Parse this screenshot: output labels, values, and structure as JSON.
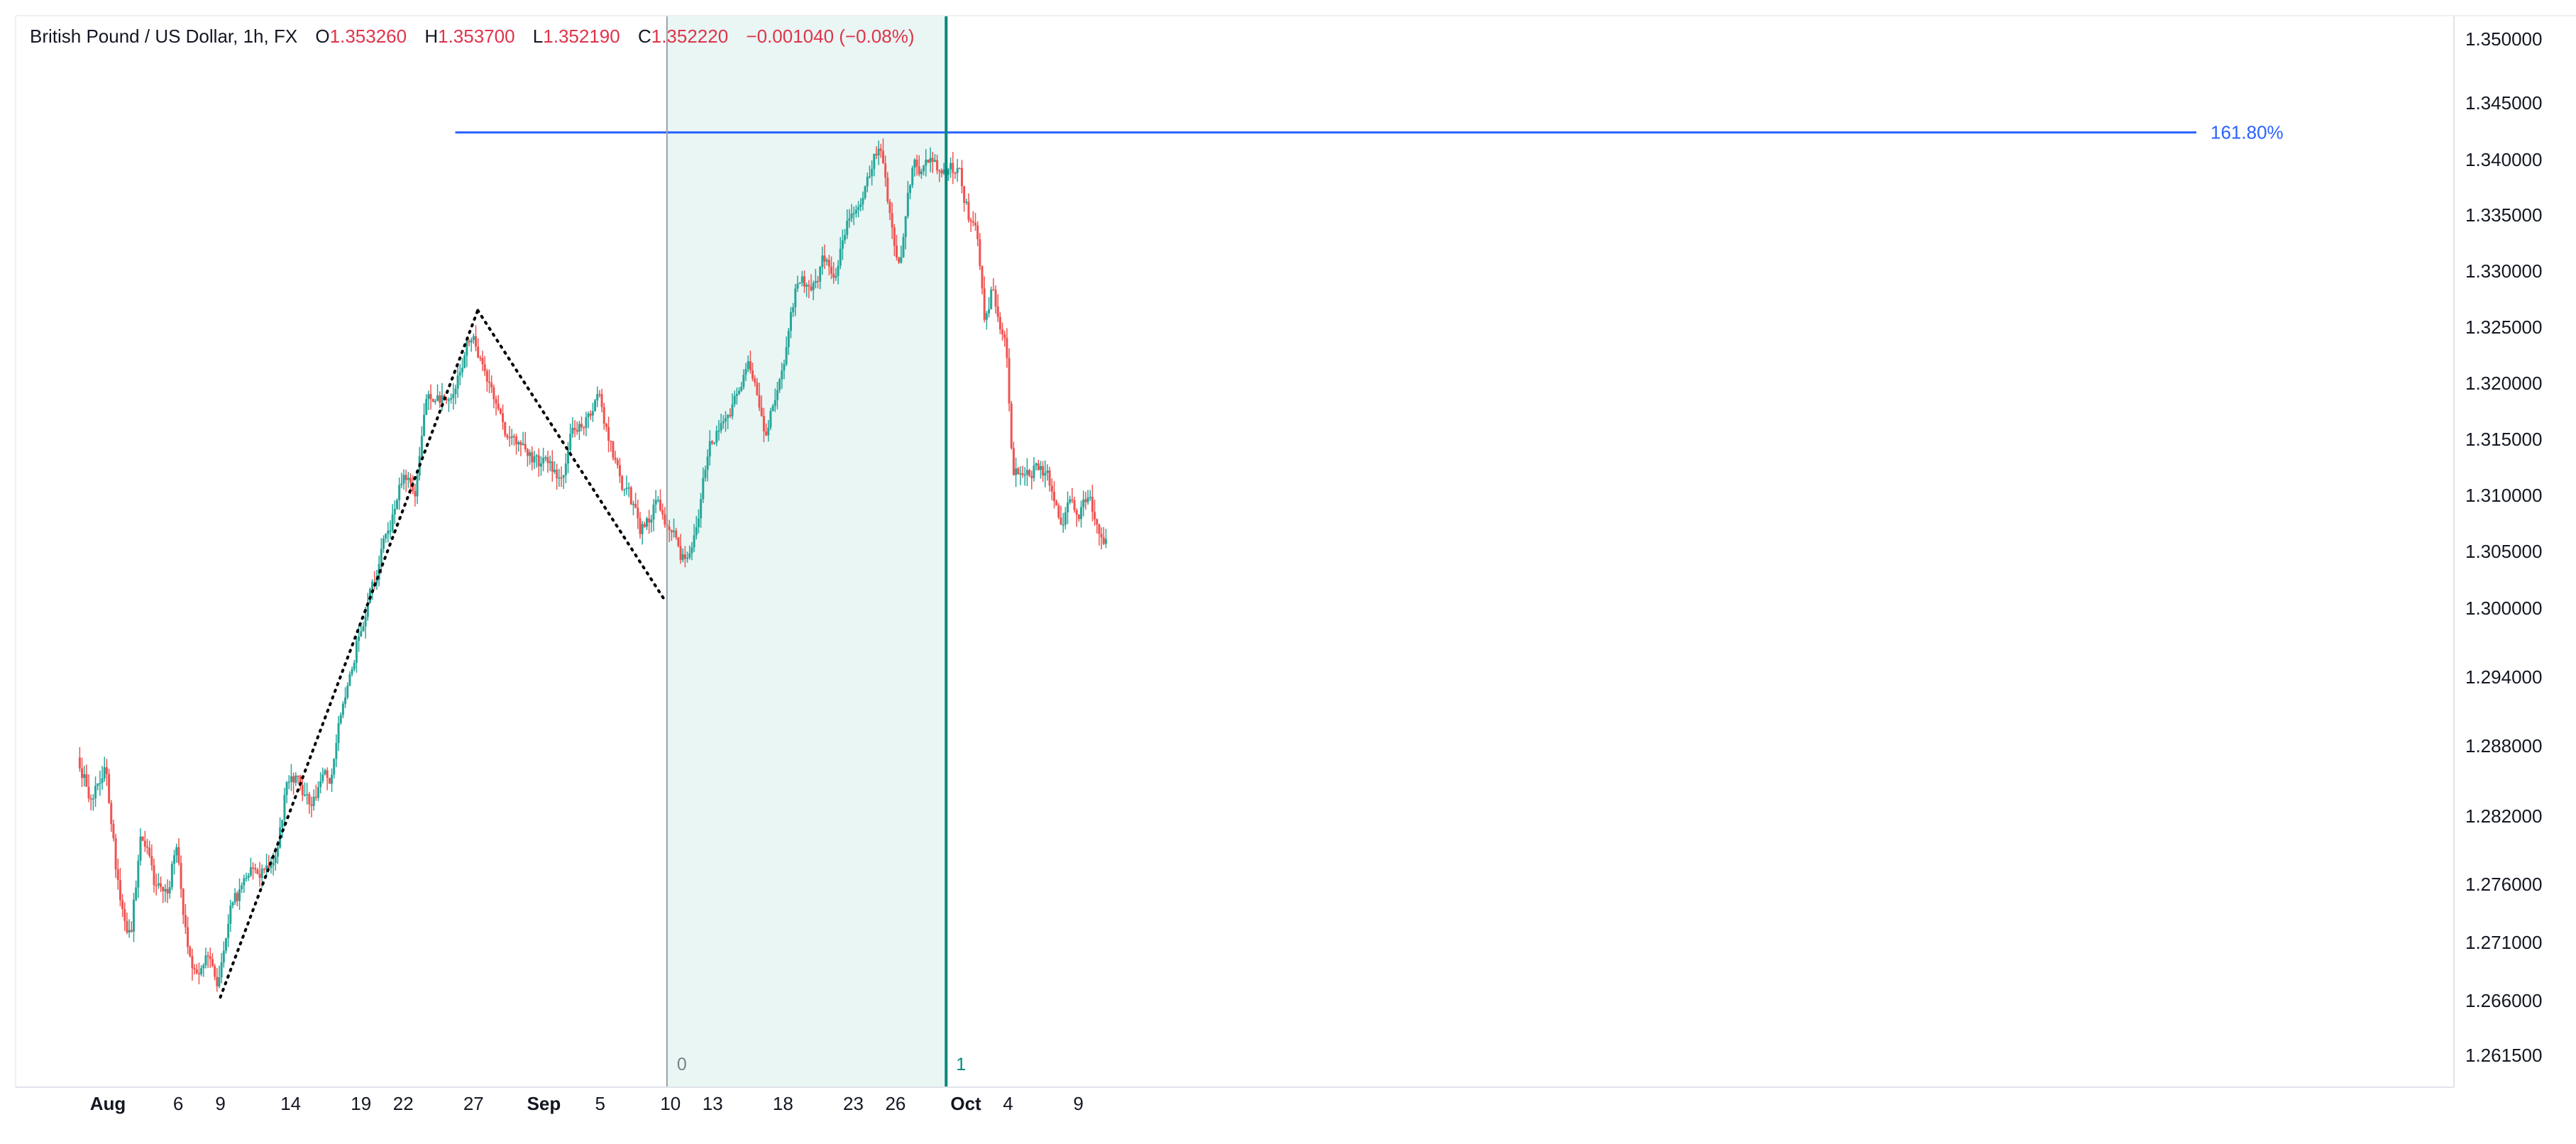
{
  "legend": {
    "symbol": "British Pound / US Dollar, 1h, FX",
    "o_label": "O",
    "o": "1.353260",
    "h_label": "H",
    "h": "1.353700",
    "l_label": "L",
    "l": "1.352190",
    "c_label": "C",
    "c": "1.352220",
    "change": "−0.001040 (−0.08%)"
  },
  "colors": {
    "up": "#26a69a",
    "down": "#ef5350",
    "fib_line": "#2962ff",
    "time_zone_fill": "#e9f6f4",
    "time_zone_line1": "#00897b",
    "time_zone_line0": "#9aa0a6",
    "trend": "#000000"
  },
  "chart_data": {
    "type": "candlestick",
    "title": "British Pound / US Dollar, 1h, FX",
    "y_axis": {
      "ticks": [
        "1.350000",
        "1.345000",
        "1.340000",
        "1.335000",
        "1.330000",
        "1.325000",
        "1.320000",
        "1.315000",
        "1.310000",
        "1.305000",
        "1.300000",
        "1.294000",
        "1.288000",
        "1.282000",
        "1.276000",
        "1.271000",
        "1.266000",
        "1.261500"
      ],
      "range": [
        1.2595,
        1.3525
      ]
    },
    "x_axis": {
      "labels": [
        {
          "text": "Aug",
          "t": 0
        },
        {
          "text": "6",
          "t": 5
        },
        {
          "text": "9",
          "t": 8
        },
        {
          "text": "14",
          "t": 13
        },
        {
          "text": "19",
          "t": 18
        },
        {
          "text": "22",
          "t": 21
        },
        {
          "text": "27",
          "t": 26
        },
        {
          "text": "Sep",
          "t": 31
        },
        {
          "text": "5",
          "t": 35
        },
        {
          "text": "10",
          "t": 40
        },
        {
          "text": "13",
          "t": 43
        },
        {
          "text": "18",
          "t": 48
        },
        {
          "text": "23",
          "t": 53
        },
        {
          "text": "26",
          "t": 56
        },
        {
          "text": "Oct",
          "t": 61
        },
        {
          "text": "4",
          "t": 64
        },
        {
          "text": "9",
          "t": 69
        }
      ]
    },
    "price_path": [
      [
        -2,
        1.287
      ],
      [
        -1,
        1.284
      ],
      [
        0,
        1.2855
      ],
      [
        0.5,
        1.28
      ],
      [
        1,
        1.2745
      ],
      [
        1.8,
        1.272
      ],
      [
        2.5,
        1.28
      ],
      [
        3,
        1.279
      ],
      [
        3.5,
        1.276
      ],
      [
        4.5,
        1.2745
      ],
      [
        5,
        1.28
      ],
      [
        5.5,
        1.274
      ],
      [
        6,
        1.27
      ],
      [
        6.5,
        1.269
      ],
      [
        7,
        1.2705
      ],
      [
        7.5,
        1.269
      ],
      [
        8,
        1.2672
      ],
      [
        9,
        1.2745
      ],
      [
        10,
        1.276
      ],
      [
        11,
        1.277
      ],
      [
        12,
        1.279
      ],
      [
        13,
        1.286
      ],
      [
        14,
        1.284
      ],
      [
        15,
        1.2835
      ],
      [
        16,
        1.285
      ],
      [
        17,
        1.293
      ],
      [
        18,
        1.298
      ],
      [
        19,
        1.302
      ],
      [
        20,
        1.306
      ],
      [
        21,
        1.311
      ],
      [
        22,
        1.311
      ],
      [
        23,
        1.319
      ],
      [
        24,
        1.3185
      ],
      [
        25,
        1.3205
      ],
      [
        26,
        1.325
      ],
      [
        27,
        1.322
      ],
      [
        28,
        1.317
      ],
      [
        29,
        1.314
      ],
      [
        30,
        1.314
      ],
      [
        31,
        1.313
      ],
      [
        32,
        1.311
      ],
      [
        33,
        1.315
      ],
      [
        34,
        1.317
      ],
      [
        35,
        1.318
      ],
      [
        36,
        1.314
      ],
      [
        37,
        1.31
      ],
      [
        38,
        1.307
      ],
      [
        39,
        1.309
      ],
      [
        40,
        1.307
      ],
      [
        41,
        1.304
      ],
      [
        42,
        1.306
      ],
      [
        43,
        1.315
      ],
      [
        44,
        1.316
      ],
      [
        45,
        1.32
      ],
      [
        46,
        1.321
      ],
      [
        47,
        1.316
      ],
      [
        48,
        1.32
      ],
      [
        49,
        1.328
      ],
      [
        50,
        1.329
      ],
      [
        51,
        1.331
      ],
      [
        52,
        1.33
      ],
      [
        53,
        1.335
      ],
      [
        54,
        1.337
      ],
      [
        55,
        1.341
      ],
      [
        56,
        1.333
      ],
      [
        56.5,
        1.331
      ],
      [
        57,
        1.336
      ],
      [
        57.5,
        1.341
      ],
      [
        58,
        1.34
      ],
      [
        59,
        1.339
      ],
      [
        60,
        1.34
      ],
      [
        60.5,
        1.339
      ],
      [
        61,
        1.337
      ],
      [
        62,
        1.332
      ],
      [
        62.5,
        1.326
      ],
      [
        63,
        1.3285
      ],
      [
        63.5,
        1.326
      ],
      [
        64,
        1.324
      ],
      [
        64.5,
        1.31
      ],
      [
        65,
        1.311
      ],
      [
        66,
        1.313
      ],
      [
        67,
        1.312
      ],
      [
        68,
        1.308
      ],
      [
        69,
        1.309
      ],
      [
        70,
        1.309
      ],
      [
        71,
        1.306
      ]
    ],
    "annotations": {
      "trend_pivots": [
        [
          8,
          1.2663
        ],
        [
          26.3,
          1.3265
        ],
        [
          39.7,
          1.3005
        ]
      ],
      "fib_extension": {
        "level_label": "161.80%",
        "price": 1.3424,
        "t_start": 24.7
      },
      "time_zones": [
        {
          "label": "0",
          "t": 39.75
        },
        {
          "label": "1",
          "t": 59.6
        }
      ]
    }
  }
}
